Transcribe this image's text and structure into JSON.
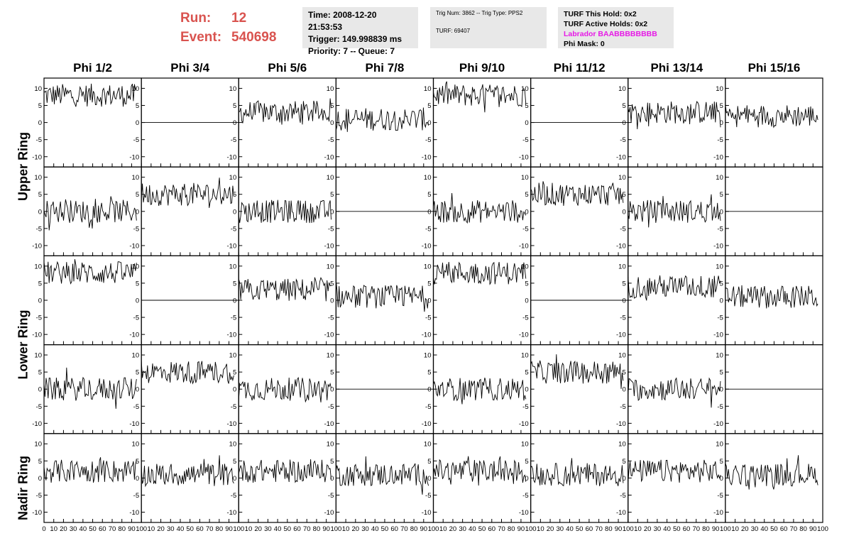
{
  "header": {
    "run_label": "Run:",
    "run_value": "12",
    "event_label": "Event:",
    "event_value": "540698"
  },
  "info_panel_1": {
    "time": "Time: 2008-12-20 21:53:53",
    "trigger": "Trigger: 149.998839 ms",
    "priority": "Priority: 7 -- Queue: 7"
  },
  "info_panel_2": {
    "trig": "Trig Num: 3862 -- Trig Type: PPS2",
    "turf": "TURF: 69407"
  },
  "info_panel_3": {
    "this_hold": "TURF This Hold: 0x2",
    "active_holds": "TURF Active Holds: 0x2",
    "labrador": "Labrador BAABBBBBBBB",
    "phi_mask": "Phi Mask: 0"
  },
  "colors": {
    "run_text": "#d9534f",
    "labrador_text": "#e619e6",
    "panel_bg": "#e8e8e8",
    "trace": "#000000"
  },
  "chart_data": {
    "type": "line",
    "columns": [
      "Phi 1/2",
      "Phi 3/4",
      "Phi 5/6",
      "Phi 7/8",
      "Phi 9/10",
      "Phi 11/12",
      "Phi 13/14",
      "Phi 15/16"
    ],
    "row_labels": [
      "Upper Ring",
      "Lower Ring",
      "Nadir Ring"
    ],
    "xlim": [
      0,
      100
    ],
    "ylim": [
      -13,
      13
    ],
    "x_ticks": [
      0,
      10,
      20,
      30,
      40,
      50,
      60,
      70,
      80,
      90,
      100
    ],
    "y_ticks": [
      -10,
      -5,
      0,
      5,
      10
    ],
    "panel_rows": 5,
    "trace_samples": 90,
    "panel_offsets": [
      [
        8,
        0,
        3,
        1,
        8,
        0,
        3,
        2
      ],
      [
        0,
        5,
        0,
        0,
        0,
        5,
        0,
        0
      ],
      [
        8,
        0,
        3,
        1,
        8,
        0,
        4,
        1
      ],
      [
        0,
        5,
        0,
        0,
        0,
        5,
        0,
        0
      ],
      [
        2,
        1,
        2,
        1,
        2,
        1,
        2,
        1
      ]
    ],
    "flat_panels": [
      [
        0,
        1
      ],
      [
        0,
        5
      ],
      [
        1,
        3
      ],
      [
        1,
        7
      ],
      [
        2,
        1
      ],
      [
        2,
        5
      ],
      [
        3,
        3
      ],
      [
        3,
        7
      ]
    ]
  }
}
